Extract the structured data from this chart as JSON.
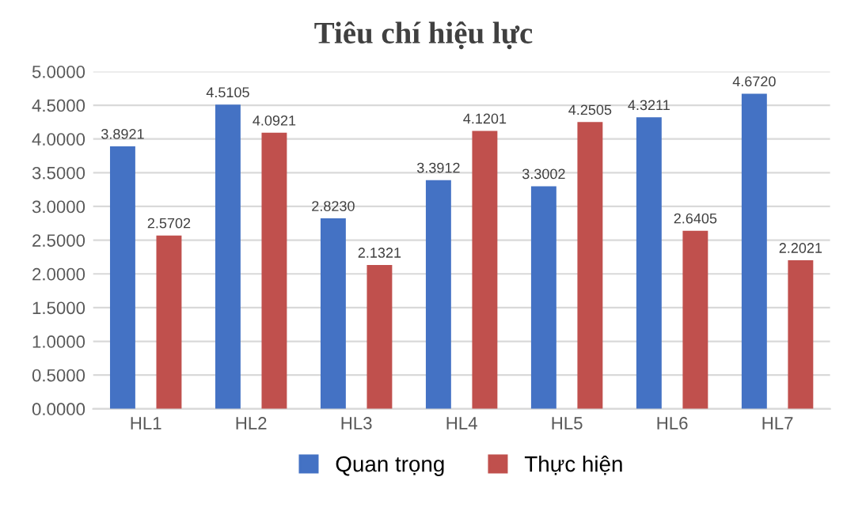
{
  "chart_data": {
    "type": "bar",
    "title": "Tiêu chí hiệu lực",
    "categories": [
      "HL1",
      "HL2",
      "HL3",
      "HL4",
      "HL5",
      "HL6",
      "HL7"
    ],
    "series": [
      {
        "name": "Quan trọng",
        "color": "#4472c4",
        "values": [
          3.8921,
          4.5105,
          2.823,
          3.3912,
          3.3002,
          4.3211,
          4.672
        ],
        "value_labels": [
          "3.8921",
          "4.5105",
          "2.8230",
          "3.3912",
          "3.3002",
          "4.3211",
          "4.6720"
        ]
      },
      {
        "name": "Thực hiện",
        "color": "#c0504d",
        "values": [
          2.5702,
          4.0921,
          2.1321,
          4.1201,
          4.2505,
          2.6405,
          2.2021
        ],
        "value_labels": [
          "2.5702",
          "4.0921",
          "2.1321",
          "4.1201",
          "4.2505",
          "2.6405",
          "2.2021"
        ]
      }
    ],
    "ylim": [
      0,
      5
    ],
    "yticks": [
      {
        "value": 0,
        "label": "0.0000"
      },
      {
        "value": 0.5,
        "label": "0.5000"
      },
      {
        "value": 1,
        "label": "1.0000"
      },
      {
        "value": 1.5,
        "label": "1.5000"
      },
      {
        "value": 2,
        "label": "2.0000"
      },
      {
        "value": 2.5,
        "label": "2.5000"
      },
      {
        "value": 3,
        "label": "3.0000"
      },
      {
        "value": 3.5,
        "label": "3.5000"
      },
      {
        "value": 4,
        "label": "4.0000"
      },
      {
        "value": 4.5,
        "label": "4.5000"
      },
      {
        "value": 5,
        "label": "5.0000"
      }
    ],
    "grid": "y",
    "legend": "bottom"
  }
}
